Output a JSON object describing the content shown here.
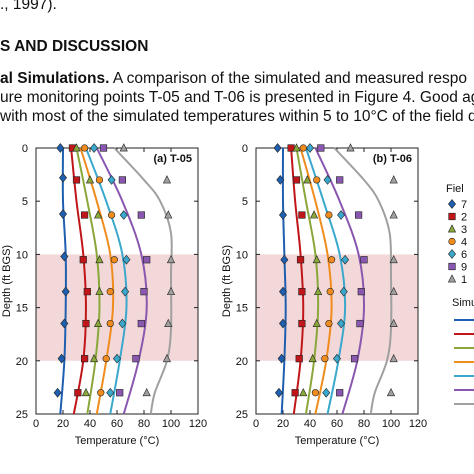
{
  "text": {
    "line1": "., 1997).",
    "heading": "S AND DISCUSSION",
    "para_bold": "al Simulations.",
    "para_line1_rest": " A comparison of the simulated and measured respo",
    "para_line2": "ure monitoring points T-05 and T-06 is presented in Figure 4. Good ag",
    "para_line3": "with most of the simulated temperatures within 5 to 10°C of the field da"
  },
  "chart_data": [
    {
      "type": "line",
      "panel_label": "(a)  T-05",
      "xlabel": "Temperature (°C)",
      "ylabel": "Depth (ft BGS)",
      "xlim": [
        0,
        120
      ],
      "ylim": [
        25,
        0
      ],
      "xticks": [
        "0",
        "20",
        "40",
        "60",
        "80",
        "100",
        "120"
      ],
      "yticks": [
        "0",
        "5",
        "10",
        "15",
        "20",
        "25"
      ],
      "shaded_band_depth": [
        10,
        20
      ],
      "series": [
        {
          "color": "#1f5fb0",
          "depth": [
            0,
            5,
            10,
            15,
            20,
            25
          ],
          "temp": [
            20,
            20,
            22,
            22,
            21,
            18
          ]
        },
        {
          "color": "#c0161a",
          "depth": [
            0,
            5,
            10,
            15,
            20,
            25
          ],
          "temp": [
            26,
            30,
            35,
            37,
            35,
            28
          ]
        },
        {
          "color": "#8aa83a",
          "depth": [
            0,
            5,
            10,
            15,
            20,
            25
          ],
          "temp": [
            30,
            38,
            45,
            47,
            44,
            38
          ]
        },
        {
          "color": "#f08c1e",
          "depth": [
            0,
            5,
            10,
            15,
            20,
            25
          ],
          "temp": [
            33,
            45,
            55,
            57,
            52,
            45
          ]
        },
        {
          "color": "#3aa8cc",
          "depth": [
            0,
            5,
            10,
            15,
            20,
            25
          ],
          "temp": [
            37,
            52,
            64,
            67,
            62,
            55
          ]
        },
        {
          "color": "#8a57b0",
          "depth": [
            0,
            5,
            10,
            15,
            20,
            25
          ],
          "temp": [
            45,
            64,
            78,
            82,
            76,
            65
          ]
        },
        {
          "color": "#a0a0a0",
          "depth": [
            0,
            3,
            5,
            8,
            12,
            17,
            20,
            23,
            25
          ],
          "temp": [
            58,
            80,
            92,
            100,
            100,
            100,
            97,
            88,
            85
          ]
        }
      ],
      "points": [
        {
          "marker": "diamond",
          "color": "#1f5fb0",
          "data": [
            [
              18,
              0
            ],
            [
              20,
              2.8
            ],
            [
              20,
              6.2
            ],
            [
              21,
              10.2
            ],
            [
              22,
              13.5
            ],
            [
              21,
              16.5
            ],
            [
              19,
              19.8
            ],
            [
              16,
              23
            ]
          ]
        },
        {
          "marker": "square",
          "color": "#c0161a",
          "data": [
            [
              27,
              0
            ],
            [
              30,
              3
            ],
            [
              36,
              6.3
            ],
            [
              35,
              10.5
            ],
            [
              38,
              13.5
            ],
            [
              37,
              16.5
            ],
            [
              36,
              19.8
            ],
            [
              31,
              23
            ]
          ]
        },
        {
          "marker": "triangle",
          "color": "#8aa83a",
          "data": [
            [
              30,
              0
            ],
            [
              40,
              3
            ],
            [
              46,
              6.3
            ],
            [
              47,
              10.5
            ],
            [
              47,
              13.5
            ],
            [
              46,
              16.5
            ],
            [
              43,
              19.8
            ],
            [
              37,
              23
            ]
          ]
        },
        {
          "marker": "circle",
          "color": "#f08c1e",
          "data": [
            [
              36,
              0
            ],
            [
              47,
              3
            ],
            [
              56,
              6.3
            ],
            [
              58,
              10.5
            ],
            [
              55,
              13.5
            ],
            [
              55,
              16.5
            ],
            [
              52,
              19.8
            ],
            [
              48,
              23
            ]
          ]
        },
        {
          "marker": "diamond",
          "color": "#3aa8cc",
          "data": [
            [
              43,
              0
            ],
            [
              56,
              3
            ],
            [
              65,
              6.3
            ],
            [
              67,
              10.5
            ],
            [
              66,
              13.5
            ],
            [
              64,
              16.5
            ],
            [
              60,
              19.8
            ],
            [
              55,
              23
            ]
          ]
        },
        {
          "marker": "square",
          "color": "#8a57b0",
          "data": [
            [
              50,
              0
            ],
            [
              64,
              3
            ],
            [
              78,
              6.3
            ],
            [
              82,
              10.5
            ],
            [
              80,
              13.5
            ],
            [
              78,
              16.5
            ],
            [
              74,
              19.8
            ],
            [
              62,
              23
            ]
          ]
        },
        {
          "marker": "triangle",
          "color": "#a0a0a0",
          "data": [
            [
              65,
              0
            ],
            [
              97,
              3
            ],
            [
              98,
              6.3
            ],
            [
              100,
              10.5
            ],
            [
              100,
              13.5
            ],
            [
              98,
              16.5
            ],
            [
              97,
              19.8
            ],
            [
              82,
              23
            ]
          ]
        }
      ]
    },
    {
      "type": "line",
      "panel_label": "(b)  T-06",
      "xlabel": "Temperature (°C)",
      "ylabel": "Depth (ft BGS)",
      "xlim": [
        0,
        120
      ],
      "ylim": [
        25,
        0
      ],
      "xticks": [
        "0",
        "20",
        "40",
        "60",
        "80",
        "100",
        "120"
      ],
      "yticks": [
        "0",
        "5",
        "10",
        "15",
        "20",
        "25"
      ],
      "shaded_band_depth": [
        10,
        20
      ],
      "series": [
        {
          "color": "#1f5fb0",
          "depth": [
            0,
            5,
            10,
            15,
            20,
            25
          ],
          "temp": [
            20,
            20,
            21,
            22,
            21,
            19
          ]
        },
        {
          "color": "#c0161a",
          "depth": [
            0,
            5,
            10,
            15,
            20,
            25
          ],
          "temp": [
            26,
            29,
            33,
            35,
            33,
            28
          ]
        },
        {
          "color": "#8aa83a",
          "depth": [
            0,
            5,
            10,
            15,
            20,
            25
          ],
          "temp": [
            30,
            37,
            44,
            46,
            43,
            37
          ]
        },
        {
          "color": "#f08c1e",
          "depth": [
            0,
            5,
            10,
            15,
            20,
            25
          ],
          "temp": [
            33,
            44,
            53,
            56,
            52,
            44
          ]
        },
        {
          "color": "#3aa8cc",
          "depth": [
            0,
            5,
            10,
            15,
            20,
            25
          ],
          "temp": [
            37,
            50,
            62,
            66,
            61,
            53
          ]
        },
        {
          "color": "#8a57b0",
          "depth": [
            0,
            5,
            10,
            15,
            20,
            25
          ],
          "temp": [
            44,
            62,
            76,
            80,
            75,
            64
          ]
        },
        {
          "color": "#a0a0a0",
          "depth": [
            0,
            3,
            5,
            8,
            12,
            17,
            20,
            23,
            25
          ],
          "temp": [
            58,
            80,
            91,
            99,
            100,
            100,
            97,
            88,
            85
          ]
        }
      ],
      "points": [
        {
          "marker": "diamond",
          "color": "#1f5fb0",
          "data": [
            [
              16,
              0
            ],
            [
              18,
              3
            ],
            [
              20,
              6.3
            ],
            [
              21,
              10.5
            ],
            [
              20,
              13.5
            ],
            [
              20,
              16.5
            ],
            [
              19,
              19.8
            ],
            [
              17,
              23
            ]
          ]
        },
        {
          "marker": "square",
          "color": "#c0161a",
          "data": [
            [
              26,
              0
            ],
            [
              30,
              3
            ],
            [
              34,
              6.3
            ],
            [
              33,
              10.5
            ],
            [
              34,
              13.5
            ],
            [
              34,
              16.5
            ],
            [
              32,
              19.8
            ],
            [
              29,
              23
            ]
          ]
        },
        {
          "marker": "triangle",
          "color": "#8aa83a",
          "data": [
            [
              30,
              0
            ],
            [
              38,
              3
            ],
            [
              43,
              6.3
            ],
            [
              45,
              10.5
            ],
            [
              46,
              13.5
            ],
            [
              45,
              16.5
            ],
            [
              42,
              19.8
            ],
            [
              35,
              23
            ]
          ]
        },
        {
          "marker": "circle",
          "color": "#f08c1e",
          "data": [
            [
              35,
              0
            ],
            [
              45,
              3
            ],
            [
              54,
              6.3
            ],
            [
              56,
              10.5
            ],
            [
              55,
              13.5
            ],
            [
              54,
              16.5
            ],
            [
              51,
              19.8
            ],
            [
              44,
              23
            ]
          ]
        },
        {
          "marker": "diamond",
          "color": "#3aa8cc",
          "data": [
            [
              40,
              0
            ],
            [
              53,
              3
            ],
            [
              63,
              6.3
            ],
            [
              66,
              10.5
            ],
            [
              65,
              13.5
            ],
            [
              63,
              16.5
            ],
            [
              60,
              19.8
            ],
            [
              52,
              23
            ]
          ]
        },
        {
          "marker": "square",
          "color": "#8a57b0",
          "data": [
            [
              48,
              0
            ],
            [
              62,
              3
            ],
            [
              76,
              6.3
            ],
            [
              80,
              10.5
            ],
            [
              78,
              13.5
            ],
            [
              77,
              16.5
            ],
            [
              73,
              19.8
            ],
            [
              62,
              23
            ]
          ]
        },
        {
          "marker": "triangle",
          "color": "#a0a0a0",
          "data": [
            [
              70,
              0
            ],
            [
              102,
              3
            ],
            [
              102,
              6.3
            ],
            [
              102,
              10.5
            ],
            [
              102,
              13.5
            ],
            [
              102,
              16.5
            ],
            [
              102,
              19.8
            ],
            [
              100,
              23
            ]
          ]
        }
      ]
    }
  ],
  "legend": {
    "field_title": "Fiel",
    "field_items": [
      {
        "marker": "diamond",
        "color": "#1f5fb0",
        "label": "7"
      },
      {
        "marker": "square",
        "color": "#c0161a",
        "label": "2"
      },
      {
        "marker": "triangle",
        "color": "#8aa83a",
        "label": "3"
      },
      {
        "marker": "circle",
        "color": "#f08c1e",
        "label": "4"
      },
      {
        "marker": "diamond",
        "color": "#3aa8cc",
        "label": "6"
      },
      {
        "marker": "square",
        "color": "#8a57b0",
        "label": "9"
      },
      {
        "marker": "triangle",
        "color": "#a0a0a0",
        "label": "1"
      }
    ],
    "sim_title": "Simu",
    "sim_colors": [
      "#1f5fb0",
      "#c0161a",
      "#8aa83a",
      "#f08c1e",
      "#3aa8cc",
      "#8a57b0",
      "#a0a0a0"
    ]
  }
}
